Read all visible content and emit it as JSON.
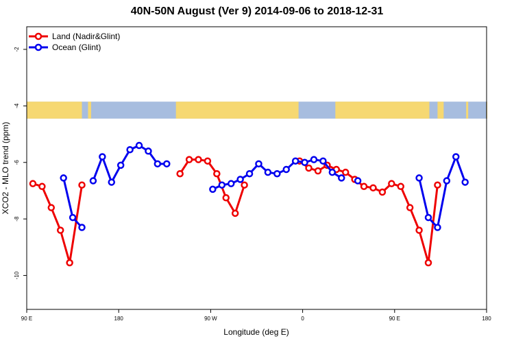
{
  "chart_data": {
    "type": "line",
    "title": "40N-50N August (Ver 9)   2014-09-06 to 2018-12-31",
    "xlabel": "Longitude (deg E)",
    "ylabel": "XCO2 - MLO trend (ppm)",
    "xlim": [
      90,
      540
    ],
    "ylim": [
      -11.2,
      -1.2
    ],
    "x_ticks": [
      {
        "value": 90,
        "label": "90 E"
      },
      {
        "value": 180,
        "label": "180"
      },
      {
        "value": 270,
        "label": "90 W"
      },
      {
        "value": 360,
        "label": "0"
      },
      {
        "value": 450,
        "label": "90 E"
      },
      {
        "value": 540,
        "label": "180"
      }
    ],
    "y_ticks": [
      {
        "value": -2,
        "label": "-2"
      },
      {
        "value": -4,
        "label": "-4"
      },
      {
        "value": -6,
        "label": "-6"
      },
      {
        "value": -8,
        "label": "-8"
      },
      {
        "value": -10,
        "label": "-10"
      }
    ],
    "grid": false,
    "legend_position": "top-left",
    "map_strip": {
      "y_range": [
        -4.45,
        -3.85
      ],
      "ocean_color": "#a7bddf",
      "land_color": "#f6d872",
      "land_spans": [
        [
          90,
          144
        ],
        [
          150,
          153
        ],
        [
          236,
          356
        ],
        [
          392,
          484
        ],
        [
          492,
          498
        ],
        [
          520,
          522
        ],
        [
          540,
          540
        ]
      ]
    },
    "series": [
      {
        "name": "Land (Nadir&Glint)",
        "color": "#ee0000",
        "segments": [
          [
            [
              96,
              -6.75
            ],
            [
              105,
              -6.85
            ],
            [
              114,
              -7.6
            ],
            [
              123,
              -8.4
            ],
            [
              132,
              -9.55
            ],
            [
              144,
              -6.8
            ]
          ],
          [
            [
              240,
              -6.4
            ],
            [
              249,
              -5.9
            ],
            [
              258,
              -5.9
            ],
            [
              267,
              -5.95
            ],
            [
              276,
              -6.4
            ],
            [
              285,
              -7.25
            ],
            [
              294,
              -7.8
            ],
            [
              303,
              -6.8
            ]
          ],
          [
            [
              357,
              -5.95
            ],
            [
              366,
              -6.2
            ],
            [
              375,
              -6.3
            ],
            [
              384,
              -6.1
            ],
            [
              393,
              -6.25
            ],
            [
              402,
              -6.35
            ],
            [
              411,
              -6.6
            ],
            [
              420,
              -6.85
            ],
            [
              429,
              -6.9
            ],
            [
              438,
              -7.05
            ],
            [
              447,
              -6.75
            ],
            [
              456,
              -6.85
            ],
            [
              465,
              -7.6
            ],
            [
              474,
              -8.4
            ],
            [
              483,
              -9.55
            ],
            [
              492,
              -6.8
            ]
          ]
        ]
      },
      {
        "name": "Ocean (Glint)",
        "color": "#0000ee",
        "segments": [
          [
            [
              126,
              -6.55
            ],
            [
              135,
              -7.95
            ],
            [
              144,
              -8.3
            ]
          ],
          [
            [
              155,
              -6.65
            ],
            [
              164,
              -5.8
            ],
            [
              173,
              -6.7
            ],
            [
              182,
              -6.1
            ],
            [
              191,
              -5.55
            ],
            [
              200,
              -5.4
            ],
            [
              209,
              -5.6
            ],
            [
              218,
              -6.05
            ],
            [
              227,
              -6.05
            ]
          ],
          [
            [
              272,
              -6.95
            ],
            [
              281,
              -6.8
            ],
            [
              290,
              -6.75
            ],
            [
              299,
              -6.6
            ],
            [
              308,
              -6.4
            ],
            [
              317,
              -6.05
            ],
            [
              326,
              -6.35
            ],
            [
              335,
              -6.4
            ],
            [
              344,
              -6.25
            ],
            [
              353,
              -5.95
            ],
            [
              362,
              -6.0
            ],
            [
              371,
              -5.9
            ],
            [
              380,
              -5.95
            ],
            [
              389,
              -6.35
            ],
            [
              398,
              -6.55
            ]
          ],
          [
            [
              414,
              -6.65
            ]
          ],
          [
            [
              474,
              -6.55
            ],
            [
              483,
              -7.95
            ],
            [
              492,
              -8.3
            ],
            [
              501,
              -6.65
            ],
            [
              510,
              -5.8
            ],
            [
              519,
              -6.7
            ]
          ]
        ]
      }
    ]
  }
}
